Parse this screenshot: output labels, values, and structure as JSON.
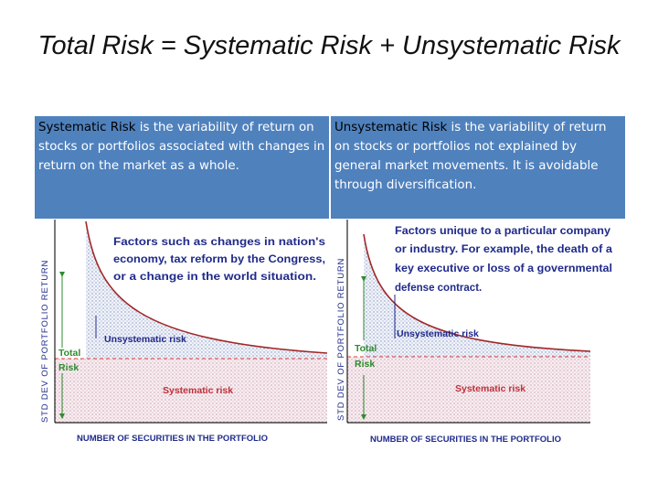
{
  "title": "Total Risk = Systematic Risk + Unsystematic Risk",
  "left_box": {
    "term": "Systematic Risk",
    "text": " is the variability of return on stocks or portfolios associated with changes in return on the market as a whole."
  },
  "right_box": {
    "term": "Unsystematic Risk",
    "text": " is the variability of return on stocks or portfolios not explained by general market movements. It is avoidable through diversification."
  },
  "left_chart": {
    "y_label": "STD DEV OF PORTFOLIO RETURN",
    "x_label": "NUMBER OF SECURITIES IN THE PORTFOLIO",
    "annotation": [
      "Factors such as changes in nation's",
      "economy, tax reform by the Congress,",
      "or a change in the world situation."
    ],
    "unsystematic_label": "Unsystematic risk",
    "total_label_1": "Total",
    "total_label_2": "Risk",
    "systematic_label": "Systematic risk"
  },
  "right_chart": {
    "y_label": "STD DEV OF PORTFOLIO RETURN",
    "x_label": "NUMBER OF SECURITIES IN THE PORTFOLIO",
    "annotation": [
      "Factors unique to a particular company",
      "or industry.  For example, the death of a",
      "key executive or loss of a governmental",
      "defense contract."
    ],
    "unsystematic_label": "Unsystematic risk",
    "total_label_1": "Total",
    "total_label_2": "Risk",
    "systematic_label": "Systematic risk"
  },
  "colors": {
    "box_bg": "#4f81bd",
    "curve": "#a02828",
    "dashed": "#e04040",
    "green": "#2e8b2e",
    "navy": "#1f2a8a"
  }
}
